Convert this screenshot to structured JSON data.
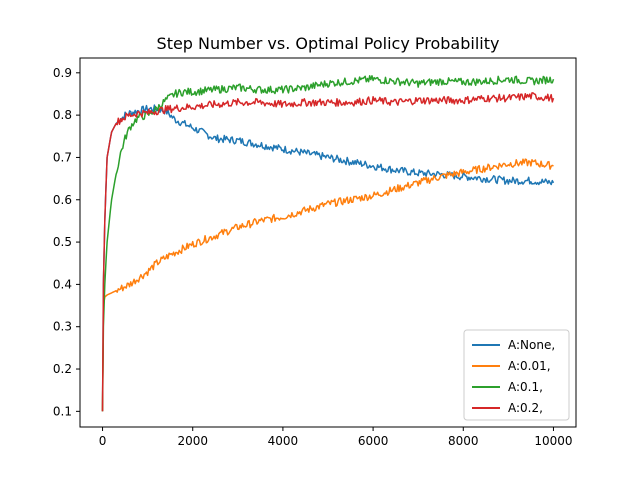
{
  "chart_data": {
    "type": "line",
    "title": "Step Number vs. Optimal Policy Probability",
    "xlabel": "",
    "ylabel": "",
    "xlim": [
      -500,
      10500
    ],
    "ylim": [
      0.063,
      0.935
    ],
    "x_ticks": [
      0,
      2000,
      4000,
      6000,
      8000,
      10000
    ],
    "y_ticks": [
      0.1,
      0.2,
      0.3,
      0.4,
      0.5,
      0.6,
      0.7,
      0.8,
      0.9
    ],
    "x_tick_labels": [
      "0",
      "2000",
      "4000",
      "6000",
      "8000",
      "10000"
    ],
    "y_tick_labels": [
      "0.1",
      "0.2",
      "0.3",
      "0.4",
      "0.5",
      "0.6",
      "0.7",
      "0.8",
      "0.9"
    ],
    "grid": false,
    "legend_position": "lower-right",
    "series": [
      {
        "name": "A:None,",
        "color": "#1f77b4",
        "x": [
          0,
          20,
          50,
          100,
          200,
          300,
          400,
          500,
          600,
          800,
          1000,
          1200,
          1400,
          1500,
          1600,
          1800,
          2000,
          2200,
          2500,
          3000,
          3500,
          4000,
          4500,
          5000,
          5500,
          6000,
          6500,
          7000,
          7500,
          8000,
          8500,
          9000,
          9500,
          10000
        ],
        "y": [
          0.1,
          0.4,
          0.55,
          0.7,
          0.76,
          0.78,
          0.79,
          0.8,
          0.805,
          0.81,
          0.815,
          0.815,
          0.81,
          0.8,
          0.79,
          0.78,
          0.77,
          0.76,
          0.745,
          0.74,
          0.73,
          0.72,
          0.71,
          0.7,
          0.69,
          0.68,
          0.67,
          0.663,
          0.66,
          0.655,
          0.65,
          0.645,
          0.645,
          0.64
        ]
      },
      {
        "name": "A:0.01,",
        "color": "#ff7f0e",
        "x": [
          0,
          20,
          50,
          100,
          200,
          400,
          600,
          800,
          1000,
          1200,
          1500,
          2000,
          2500,
          3000,
          3500,
          4000,
          4500,
          5000,
          5500,
          6000,
          6500,
          7000,
          7500,
          8000,
          8500,
          9000,
          9500,
          10000
        ],
        "y": [
          0.1,
          0.35,
          0.37,
          0.375,
          0.38,
          0.39,
          0.4,
          0.415,
          0.43,
          0.45,
          0.47,
          0.495,
          0.515,
          0.535,
          0.55,
          0.56,
          0.575,
          0.59,
          0.6,
          0.61,
          0.625,
          0.64,
          0.655,
          0.665,
          0.675,
          0.685,
          0.688,
          0.68
        ]
      },
      {
        "name": "A:0.1,",
        "color": "#2ca02c",
        "x": [
          0,
          20,
          50,
          100,
          200,
          300,
          400,
          500,
          600,
          700,
          800,
          1000,
          1200,
          1400,
          1600,
          1800,
          2000,
          2500,
          3000,
          3500,
          4000,
          4500,
          5000,
          5500,
          6000,
          6500,
          7000,
          7500,
          8000,
          8500,
          9000,
          9500,
          10000
        ],
        "y": [
          0.1,
          0.3,
          0.4,
          0.5,
          0.6,
          0.66,
          0.71,
          0.745,
          0.77,
          0.785,
          0.795,
          0.8,
          0.815,
          0.835,
          0.85,
          0.855,
          0.855,
          0.86,
          0.865,
          0.86,
          0.86,
          0.865,
          0.875,
          0.88,
          0.885,
          0.88,
          0.875,
          0.88,
          0.878,
          0.88,
          0.885,
          0.88,
          0.885
        ]
      },
      {
        "name": "A:0.2,",
        "color": "#d62728",
        "x": [
          0,
          20,
          50,
          100,
          200,
          300,
          400,
          500,
          600,
          800,
          1000,
          1200,
          1500,
          2000,
          2500,
          3000,
          3500,
          4000,
          4500,
          5000,
          5500,
          6000,
          6500,
          7000,
          7500,
          8000,
          8500,
          9000,
          9500,
          10000
        ],
        "y": [
          0.1,
          0.4,
          0.55,
          0.7,
          0.76,
          0.78,
          0.79,
          0.795,
          0.8,
          0.805,
          0.805,
          0.81,
          0.815,
          0.82,
          0.825,
          0.83,
          0.83,
          0.825,
          0.83,
          0.83,
          0.83,
          0.835,
          0.83,
          0.835,
          0.835,
          0.835,
          0.84,
          0.84,
          0.845,
          0.84
        ]
      }
    ]
  }
}
